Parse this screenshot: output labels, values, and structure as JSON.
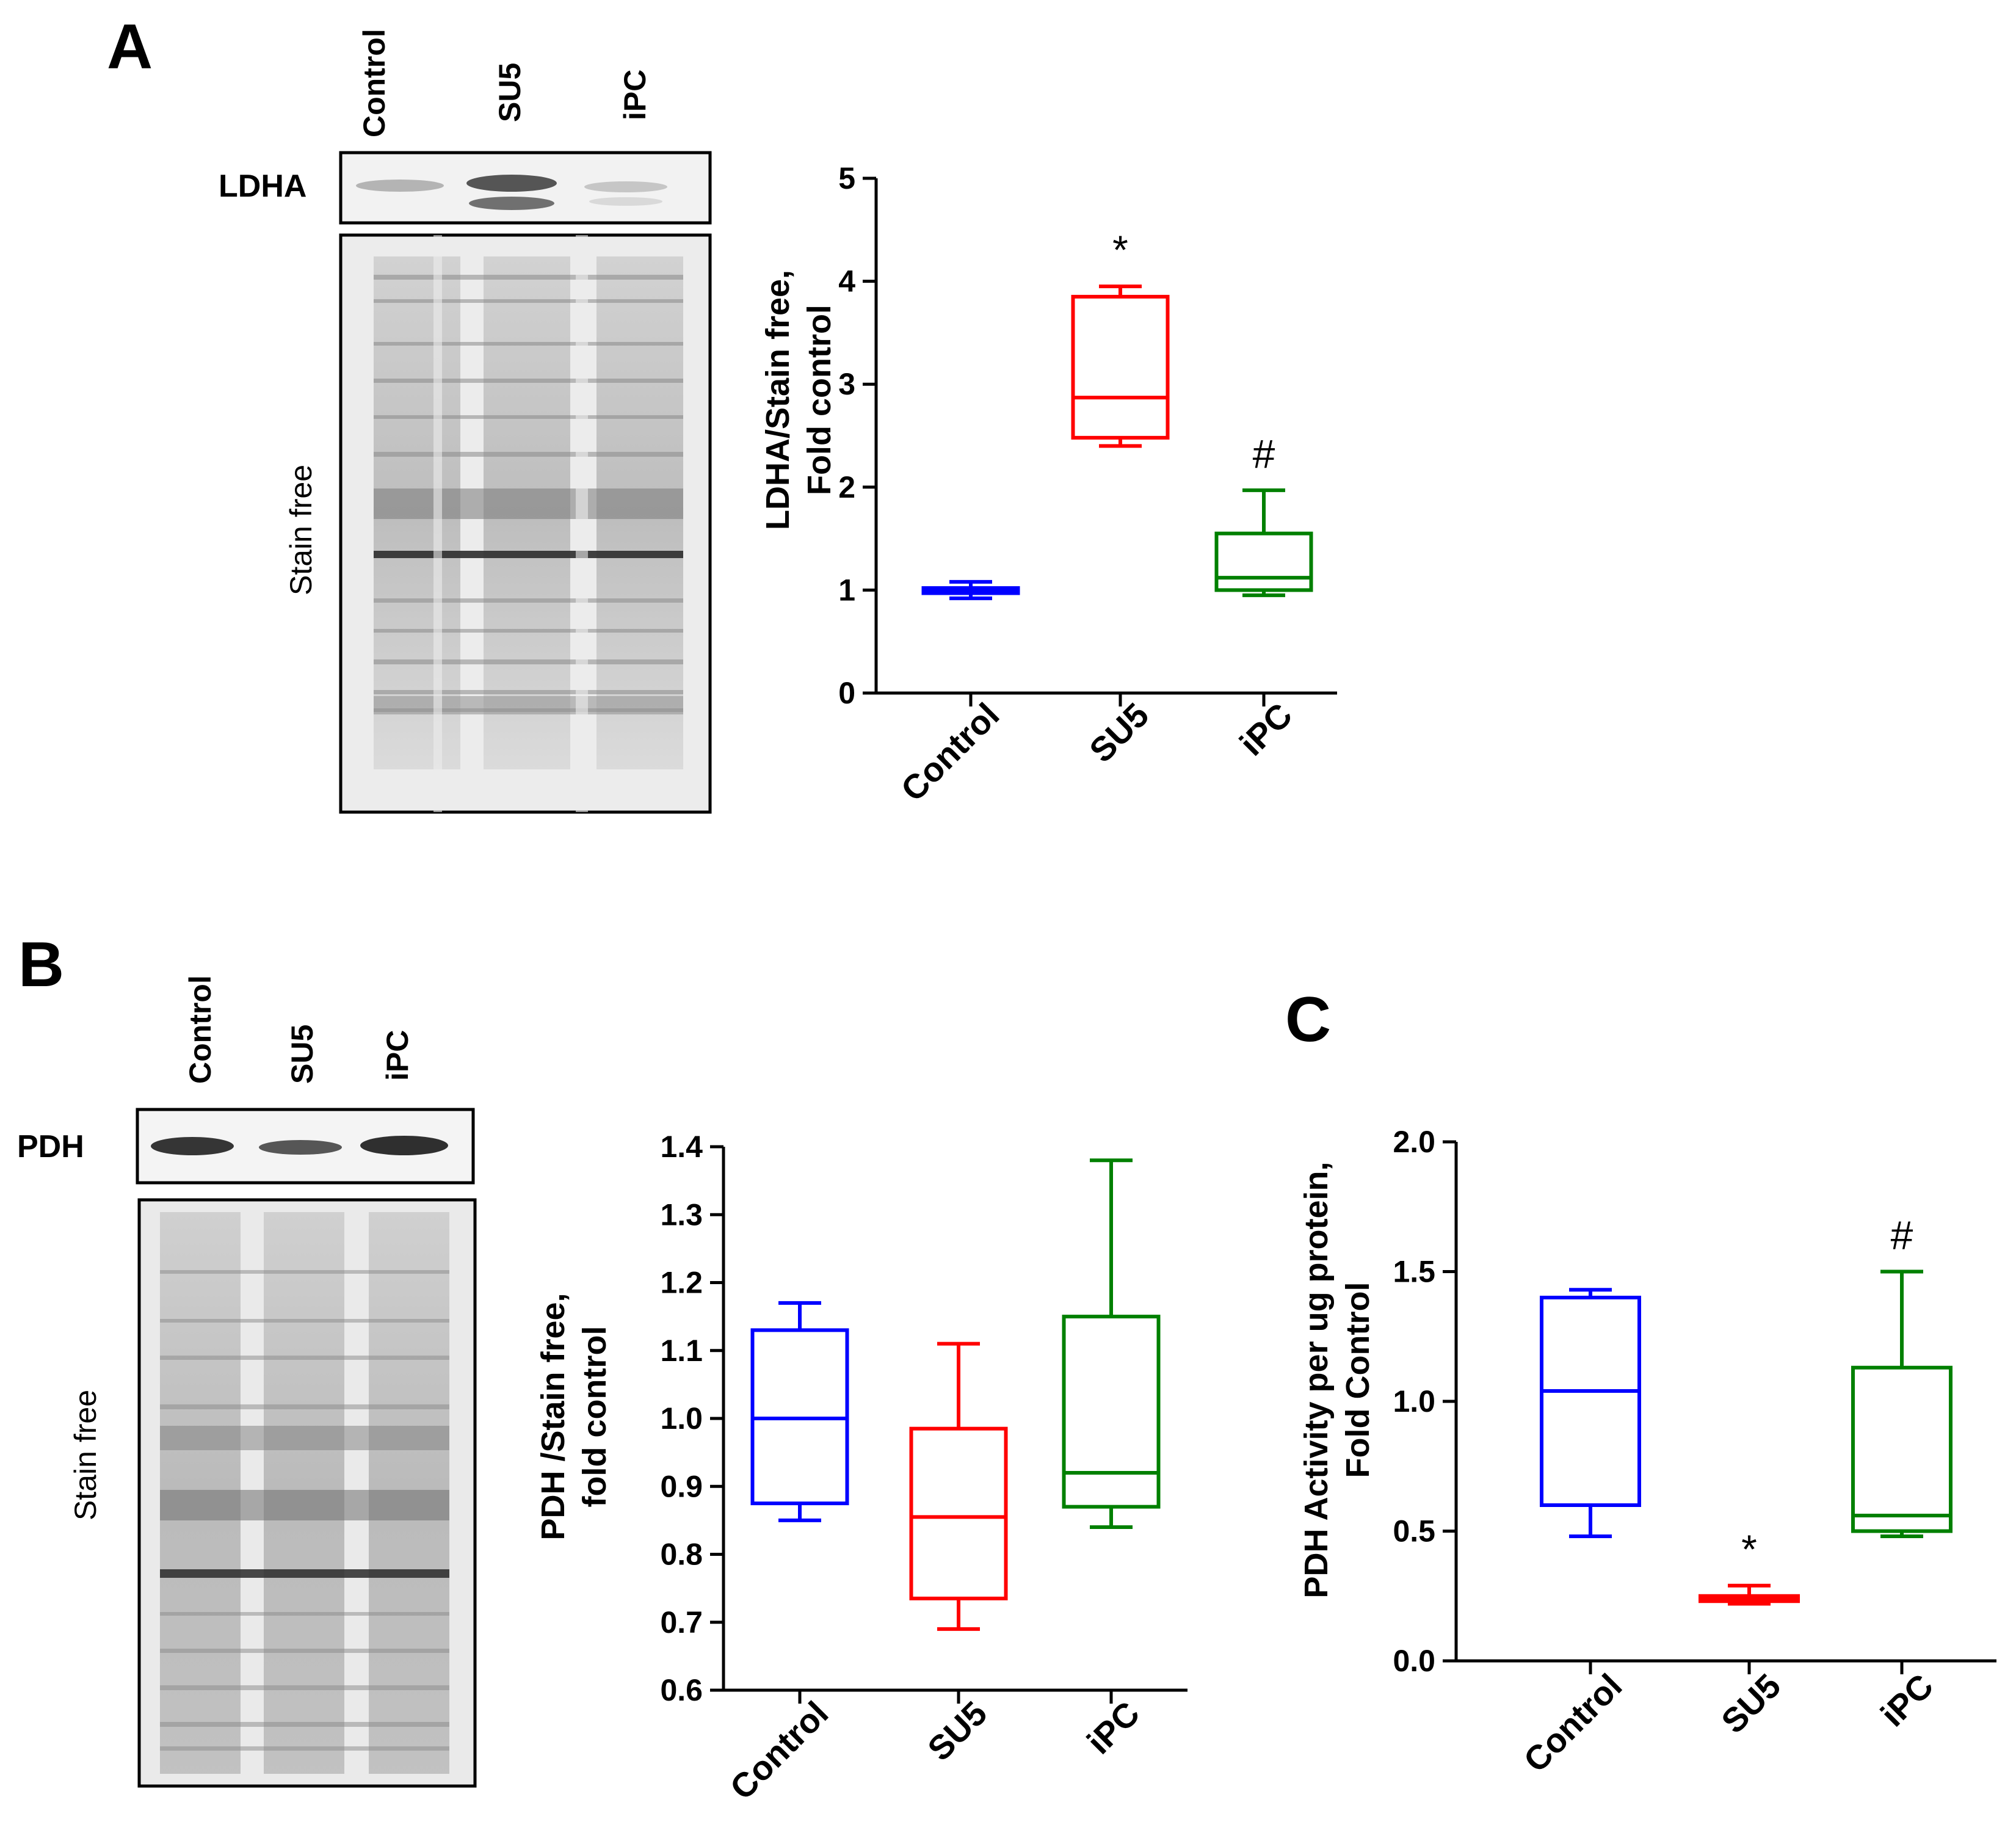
{
  "panels": {
    "A": {
      "letter": "A",
      "lanes": [
        "Control",
        "SU5",
        "iPC"
      ],
      "protein": "LDHA",
      "stain": "Stain free"
    },
    "B": {
      "letter": "B",
      "lanes": [
        "Control",
        "SU5",
        "iPC"
      ],
      "protein": "PDH",
      "stain": "Stain free"
    },
    "C": {
      "letter": "C"
    }
  },
  "chart_data": [
    {
      "panel": "A",
      "type": "box",
      "categories": [
        "Control",
        "SU5",
        "iPC"
      ],
      "ylabel": "LDHA/Stain free,\nFold control",
      "ylabel_lines": [
        "LDHA/Stain free,",
        "Fold control"
      ],
      "ylim": [
        0,
        5
      ],
      "yticks": [
        0,
        1,
        2,
        3,
        4,
        5
      ],
      "ytick_labels": [
        "0",
        "1",
        "2",
        "3",
        "4",
        "5"
      ],
      "boxes": [
        {
          "category": "Control",
          "min": 0.92,
          "q1": 0.97,
          "median": 1.0,
          "q3": 1.02,
          "max": 1.08,
          "color": "#0000ff",
          "sig": ""
        },
        {
          "category": "SU5",
          "min": 2.4,
          "q1": 2.48,
          "median": 2.87,
          "q3": 3.85,
          "max": 3.95,
          "color": "#ff0000",
          "sig": "*"
        },
        {
          "category": "iPC",
          "min": 0.95,
          "q1": 1.0,
          "median": 1.12,
          "q3": 1.55,
          "max": 1.97,
          "color": "#008000",
          "sig": "#"
        }
      ],
      "grid": false
    },
    {
      "panel": "B",
      "type": "box",
      "categories": [
        "Control",
        "SU5",
        "iPC"
      ],
      "ylabel": "PDH /Stain free,\nfold control",
      "ylabel_lines": [
        "PDH /Stain free,",
        "fold control"
      ],
      "ylim": [
        0.6,
        1.4
      ],
      "yticks": [
        0.6,
        0.7,
        0.8,
        0.9,
        1.0,
        1.1,
        1.2,
        1.3,
        1.4
      ],
      "ytick_labels": [
        "0.6",
        "0.7",
        "0.8",
        "0.9",
        "1.0",
        "1.1",
        "1.2",
        "1.3",
        "1.4"
      ],
      "boxes": [
        {
          "category": "Control",
          "min": 0.85,
          "q1": 0.875,
          "median": 1.0,
          "q3": 1.13,
          "max": 1.17,
          "color": "#0000ff",
          "sig": ""
        },
        {
          "category": "SU5",
          "min": 0.69,
          "q1": 0.735,
          "median": 0.855,
          "q3": 0.985,
          "max": 1.11,
          "color": "#ff0000",
          "sig": ""
        },
        {
          "category": "iPC",
          "min": 0.84,
          "q1": 0.87,
          "median": 0.92,
          "q3": 1.15,
          "max": 1.38,
          "color": "#008000",
          "sig": ""
        }
      ],
      "grid": false
    },
    {
      "panel": "C",
      "type": "box",
      "categories": [
        "Control",
        "SU5",
        "iPC"
      ],
      "ylabel": "PDH Activity per ug protein,\nFold Control",
      "ylabel_lines": [
        "PDH Activity per ug protein,",
        "Fold Control"
      ],
      "ylim": [
        0.0,
        2.0
      ],
      "yticks": [
        0.0,
        0.5,
        1.0,
        1.5,
        2.0
      ],
      "ytick_labels": [
        "0.0",
        "0.5",
        "1.0",
        "1.5",
        "2.0"
      ],
      "boxes": [
        {
          "category": "Control",
          "min": 0.48,
          "q1": 0.6,
          "median": 1.04,
          "q3": 1.4,
          "max": 1.43,
          "color": "#0000ff",
          "sig": ""
        },
        {
          "category": "SU5",
          "min": 0.22,
          "q1": 0.23,
          "median": 0.24,
          "q3": 0.25,
          "max": 0.29,
          "color": "#ff0000",
          "sig": "*"
        },
        {
          "category": "iPC",
          "min": 0.48,
          "q1": 0.5,
          "median": 0.56,
          "q3": 1.13,
          "max": 1.5,
          "color": "#008000",
          "sig": "#"
        }
      ],
      "grid": false
    }
  ]
}
